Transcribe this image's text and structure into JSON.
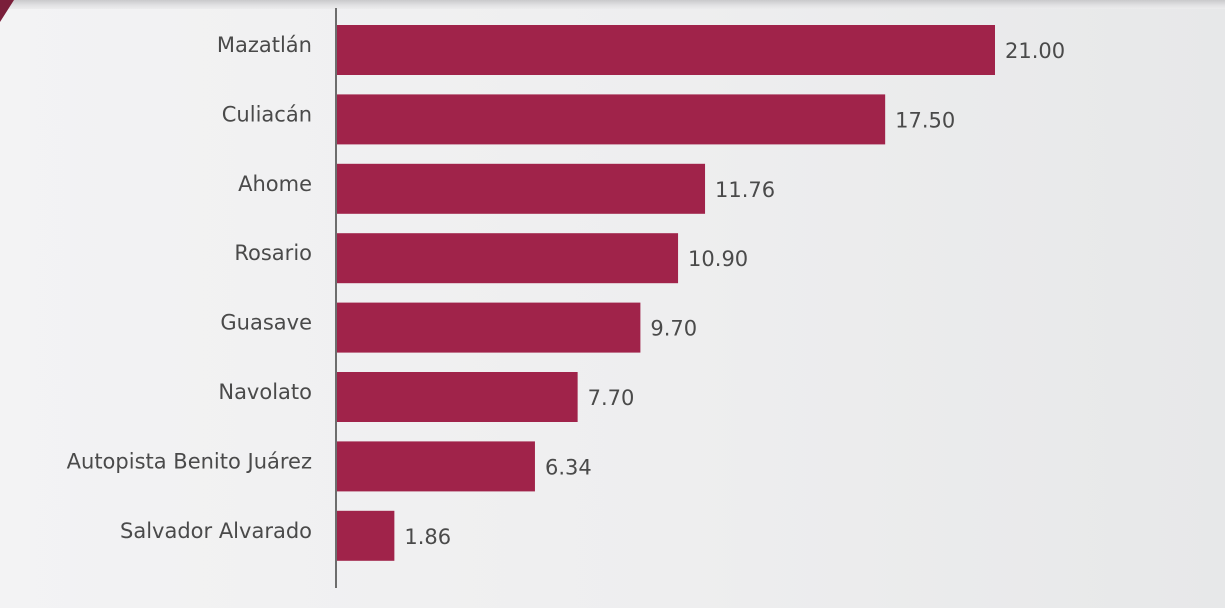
{
  "chart_data": {
    "type": "bar",
    "orientation": "horizontal",
    "categories": [
      "Mazatlán",
      "Culiacán",
      "Ahome",
      "Rosario",
      "Guasave",
      "Navolato",
      "Autopista Benito Juárez",
      "Salvador Alvarado"
    ],
    "values": [
      21.0,
      17.5,
      11.76,
      10.9,
      9.7,
      7.7,
      6.34,
      1.86
    ],
    "value_labels": [
      "21.00",
      "17.50",
      "11.76",
      "10.90",
      "9.70",
      "7.70",
      "6.34",
      "1.86"
    ],
    "xlim": [
      0,
      21
    ],
    "grid": false,
    "bar_color": "#a0234a"
  }
}
